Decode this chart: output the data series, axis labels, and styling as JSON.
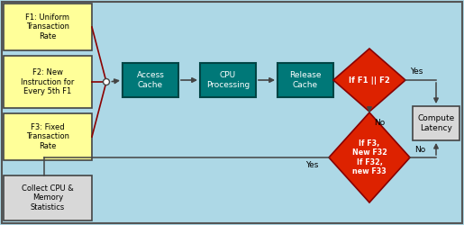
{
  "bg_color": "#add8e6",
  "teal_color": "#007878",
  "red_color": "#dd2200",
  "yellow_color": "#ffff99",
  "gray_color": "#d8d8d8",
  "dark_border": "#555555",
  "teal_border": "#004444",
  "f1_text": "F1: Uniform\nTransaction\nRate",
  "f2_text": "F2: New\nInstruction for\nEvery 5th F1",
  "f3_text": "F3: Fixed\nTransaction\nRate",
  "box1_text": "Access\nCache",
  "box2_text": "CPU\nProcessing",
  "box3_text": "Release\nCache",
  "diamond1_text": "If F1 || F2",
  "diamond2_text": "If F3,\nNew F32\nIf F32,\nnew F33",
  "compute_text": "Compute\nLatency",
  "collect_text": "Collect CPU &\nMemory\nStatistics",
  "yes1_label": "Yes",
  "no1_label": "No",
  "yes2_label": "Yes",
  "no2_label": "No",
  "figw": 5.15,
  "figh": 2.5,
  "dpi": 100
}
